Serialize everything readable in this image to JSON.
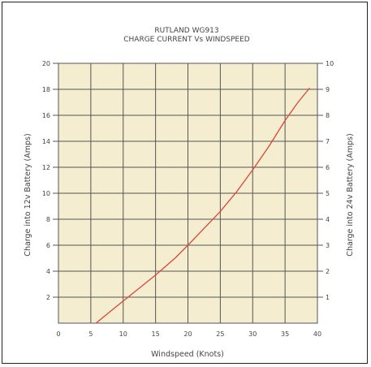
{
  "chart_data": {
    "type": "line",
    "title": "RUTLAND WG913",
    "subtitle": "CHARGE CURRENT Vs WINDSPEED",
    "xlabel": "Windspeed (Knots)",
    "ylabel": "Charge into 12v Battery (Amps)",
    "ylabel_right": "Charge into 24v Battery (Amps)",
    "xlim": [
      0,
      40
    ],
    "ylim": [
      0,
      20
    ],
    "ylim_right": [
      0,
      10
    ],
    "x_ticks": [
      "0",
      "5",
      "10",
      "15",
      "20",
      "25",
      "30",
      "35",
      "40"
    ],
    "y_ticks": [
      "2",
      "4",
      "6",
      "8",
      "10",
      "12",
      "14",
      "16",
      "18",
      "20"
    ],
    "y_ticks_right": [
      "1",
      "2",
      "3",
      "4",
      "5",
      "6",
      "7",
      "8",
      "9",
      "10"
    ],
    "grid": true,
    "series": [
      {
        "x": [
          5.8,
          8,
          10,
          12,
          15,
          18,
          20,
          22.5,
          25,
          27.5,
          30,
          32.5,
          35,
          37,
          38.8
        ],
        "y": [
          0,
          0.9,
          1.7,
          2.5,
          3.7,
          5.0,
          6.0,
          7.3,
          8.6,
          10.1,
          11.8,
          13.6,
          15.6,
          17.0,
          18.1
        ]
      }
    ],
    "colors": {
      "line": "#d9463c",
      "plot_background": "#f5edcf",
      "grid": "#555555",
      "text": "#444444"
    }
  }
}
